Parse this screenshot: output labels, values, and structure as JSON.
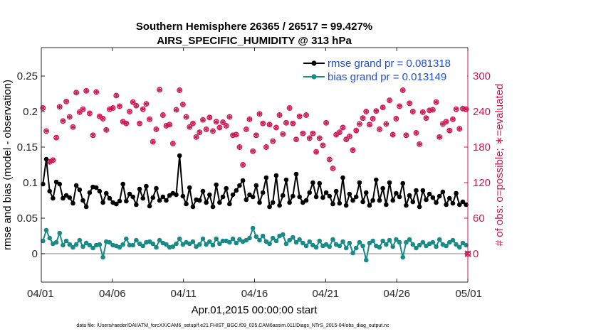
{
  "chart_data": {
    "type": "line",
    "title": "Southern Hemisphere 26365 / 26517 = 99.427%",
    "subtitle": "AIRS_SPECIFIC_HUMIDITY @ 313 hPa",
    "xlabel": "Apr.01,2015 00:00:00 start",
    "ylabel": "rmse and bias (model - observation)",
    "y2label": "# of obs: o=possible; ∗=evaluated",
    "footnote": "data file: /Users/raeder/DAI/ATM_forcXX/CAM6_setup/f.e21.FHIST_BGC.f09_025.CAM6assim.011/Diags_NTrS_2015-04/obs_diag_output.nc",
    "xlim": [
      0,
      30
    ],
    "ylim": [
      -0.04,
      0.29
    ],
    "y2lim": [
      -48,
      348
    ],
    "x_ticks": [
      0,
      5,
      10,
      15,
      20,
      25,
      30
    ],
    "x_tick_labels": [
      "04/01",
      "04/06",
      "04/11",
      "04/16",
      "04/21",
      "04/26",
      "05/01"
    ],
    "y_ticks": [
      0,
      0.05,
      0.1,
      0.15,
      0.2,
      0.25
    ],
    "y_tick_labels": [
      "0",
      "0.05",
      "0.1",
      "0.15",
      "0.2",
      "0.25"
    ],
    "y2_ticks": [
      0,
      60,
      120,
      180,
      240,
      300
    ],
    "y2_tick_labels": [
      "0",
      "60",
      "120",
      "180",
      "240",
      "300"
    ],
    "colors": {
      "rmse": "#000000",
      "bias": "#1a8a87",
      "obs": "#cc1753",
      "legend_text": "#1f4fd8",
      "zero_line": "#b0b0b0"
    },
    "legend": [
      {
        "name": "rmse",
        "label": "rmse grand pr = 0.081318"
      },
      {
        "name": "bias",
        "label": "bias grand pr = 0.013149"
      }
    ],
    "series": [
      {
        "name": "rmse",
        "axis": "left",
        "values": [
          0.098,
          0.133,
          0.088,
          0.078,
          0.101,
          0.098,
          0.078,
          0.082,
          0.079,
          0.071,
          0.096,
          0.09,
          0.075,
          0.066,
          0.086,
          0.094,
          0.093,
          0.088,
          0.072,
          0.085,
          0.078,
          0.072,
          0.07,
          0.074,
          0.098,
          0.074,
          0.084,
          0.08,
          0.069,
          0.091,
          0.078,
          0.095,
          0.067,
          0.079,
          0.092,
          0.075,
          0.08,
          0.075,
          0.082,
          0.085,
          0.083,
          0.138,
          0.081,
          0.07,
          0.093,
          0.066,
          0.076,
          0.075,
          0.088,
          0.072,
          0.083,
          0.066,
          0.097,
          0.072,
          0.08,
          0.092,
          0.07,
          0.083,
          0.089,
          0.096,
          0.103,
          0.076,
          0.083,
          0.08,
          0.096,
          0.072,
          0.086,
          0.107,
          0.066,
          0.072,
          0.11,
          0.068,
          0.082,
          0.104,
          0.072,
          0.081,
          0.112,
          0.08,
          0.072,
          0.075,
          0.086,
          0.1,
          0.08,
          0.099,
          0.079,
          0.086,
          0.081,
          0.07,
          0.088,
          0.071,
          0.107,
          0.068,
          0.084,
          0.075,
          0.08,
          0.1,
          0.073,
          0.086,
          0.068,
          0.075,
          0.104,
          0.075,
          0.092,
          0.069,
          0.1,
          0.075,
          0.085,
          0.08,
          0.099,
          0.068,
          0.082,
          0.073,
          0.089,
          0.066,
          0.089,
          0.076,
          0.084,
          0.079,
          0.072,
          0.081,
          0.087,
          0.069,
          0.078,
          0.071,
          0.085,
          0.069,
          0.073,
          0.069
        ]
      },
      {
        "name": "bias",
        "axis": "left",
        "values": [
          0.018,
          0.033,
          0.022,
          0.014,
          0.016,
          0.029,
          0.012,
          0.018,
          0.013,
          0.009,
          0.013,
          0.019,
          0.01,
          0.015,
          0.012,
          0.008,
          0.012,
          0.013,
          -0.005,
          0.017,
          0.016,
          0.012,
          0.011,
          0.009,
          0.013,
          0.021,
          0.012,
          0.012,
          0.019,
          0.014,
          0.011,
          0.016,
          0.017,
          0.014,
          0.009,
          0.019,
          0.015,
          0.013,
          0.009,
          0.01,
          0.014,
          0.021,
          0.013,
          0.016,
          0.014,
          0.017,
          0.01,
          0.013,
          0.021,
          0.013,
          0.017,
          0.012,
          0.021,
          0.014,
          0.018,
          0.018,
          0.016,
          0.021,
          0.015,
          0.02,
          0.017,
          0.019,
          0.022,
          0.036,
          0.024,
          0.019,
          0.025,
          0.017,
          0.014,
          0.022,
          0.018,
          0.025,
          0.027,
          0.014,
          0.019,
          0.023,
          0.016,
          0.02,
          0.015,
          0.011,
          0.017,
          0.012,
          0.009,
          0.018,
          0.011,
          0.013,
          0.01,
          0.02,
          0.013,
          0.011,
          0.017,
          0.008,
          0.015,
          0.001,
          0.008,
          0.016,
          0.011,
          -0.009,
          0.015,
          0.018,
          0.011,
          0.009,
          0.018,
          0.013,
          0.019,
          0.01,
          0.02,
          0.016,
          -0.005,
          0.016,
          0.02,
          0.013,
          0.008,
          0.012,
          0.016,
          0.011,
          0.014,
          0.016,
          0.01,
          0.02,
          0.013,
          0.011,
          0.016,
          0.019,
          0.013,
          0.009,
          0.015,
          0.012
        ]
      },
      {
        "name": "obs_possible",
        "axis": "right",
        "marker": "o",
        "values": [
          246,
          207,
          155,
          158,
          196,
          248,
          224,
          257,
          231,
          214,
          272,
          239,
          244,
          275,
          237,
          200,
          273,
          232,
          228,
          209,
          244,
          246,
          267,
          249,
          223,
          220,
          240,
          256,
          250,
          220,
          244,
          253,
          227,
          189,
          210,
          277,
          234,
          216,
          218,
          186,
          243,
          276,
          252,
          231,
          214,
          220,
          197,
          205,
          226,
          210,
          230,
          207,
          223,
          213,
          222,
          216,
          231,
          200,
          201,
          180,
          150,
          210,
          227,
          173,
          200,
          236,
          220,
          180,
          218,
          190,
          213,
          234,
          202,
          221,
          246,
          220,
          193,
          232,
          203,
          234,
          195,
          203,
          172,
          195,
          183,
          221,
          159,
          144,
          201,
          205,
          213,
          193,
          198,
          175,
          208,
          219,
          229,
          240,
          218,
          228,
          241,
          210,
          247,
          219,
          259,
          201,
          228,
          249,
          276,
          200,
          254,
          240,
          204,
          185,
          239,
          229,
          242,
          243,
          256,
          197,
          219,
          223,
          208,
          227,
          244,
          211,
          245,
          244
        ]
      },
      {
        "name": "obs_evaluated",
        "axis": "right",
        "marker": "*",
        "values": [
          246,
          207,
          155,
          158,
          196,
          248,
          224,
          257,
          231,
          214,
          272,
          239,
          244,
          275,
          237,
          200,
          273,
          232,
          228,
          209,
          244,
          246,
          267,
          249,
          223,
          220,
          240,
          256,
          250,
          220,
          244,
          253,
          227,
          189,
          210,
          277,
          234,
          216,
          218,
          186,
          243,
          276,
          252,
          231,
          214,
          220,
          197,
          205,
          226,
          210,
          230,
          207,
          223,
          213,
          222,
          216,
          231,
          200,
          201,
          180,
          150,
          210,
          227,
          173,
          200,
          236,
          220,
          180,
          218,
          190,
          213,
          234,
          202,
          221,
          246,
          220,
          193,
          232,
          203,
          234,
          195,
          203,
          172,
          195,
          183,
          221,
          159,
          144,
          201,
          205,
          213,
          193,
          198,
          175,
          208,
          219,
          229,
          240,
          218,
          228,
          241,
          210,
          247,
          219,
          259,
          201,
          228,
          249,
          276,
          200,
          254,
          240,
          204,
          185,
          239,
          229,
          242,
          243,
          256,
          197,
          219,
          223,
          208,
          227,
          244,
          211,
          245,
          244
        ]
      }
    ],
    "extra_points": [
      {
        "name": "obs_end",
        "axis": "right",
        "x": 30,
        "y": 0
      }
    ]
  }
}
